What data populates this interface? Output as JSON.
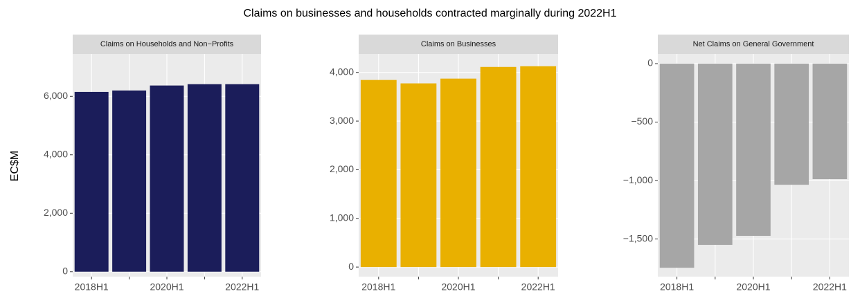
{
  "title": "Claims on businesses and households contracted marginally during 2022H1",
  "ylabel": "EC$M",
  "chart_data": [
    {
      "type": "bar",
      "title": "Claims on Households and Non−Profits",
      "categories": [
        "2018H1",
        null,
        "2020H1",
        null,
        "2022H1"
      ],
      "values": [
        6150,
        6200,
        6370,
        6415,
        6415
      ],
      "color": "#1b1d5a",
      "ylim": [
        -170,
        7450
      ],
      "yticks": [
        0,
        {
          "value": 2000,
          "label": "2,000"
        },
        {
          "value": 4000,
          "label": "4,000"
        },
        {
          "value": 6000,
          "label": "6,000"
        }
      ],
      "grid": true
    },
    {
      "type": "bar",
      "title": "Claims on Businesses",
      "categories": [
        "2018H1",
        null,
        "2020H1",
        null,
        "2022H1"
      ],
      "values": [
        3845,
        3775,
        3873,
        4113,
        4127
      ],
      "color": "#e9b000",
      "ylim": [
        -197,
        4380
      ],
      "yticks": [
        0,
        {
          "value": 1000,
          "label": "1,000"
        },
        {
          "value": 2000,
          "label": "2,000"
        },
        {
          "value": 3000,
          "label": "3,000"
        },
        {
          "value": 4000,
          "label": "4,000"
        }
      ],
      "grid": true
    },
    {
      "type": "bar",
      "title": "Net Claims on General Government",
      "categories": [
        "2018H1",
        null,
        "2020H1",
        null,
        "2022H1"
      ],
      "values": [
        -1746,
        -1550,
        -1473,
        -1036,
        -988
      ],
      "color": "#a6a6a6",
      "ylim": [
        -1822,
        83
      ],
      "yticks": [
        {
          "value": -1500,
          "label": "−1,500"
        },
        {
          "value": -1000,
          "label": "−1,000"
        },
        {
          "value": -500,
          "label": "−500"
        },
        0
      ],
      "grid": true
    }
  ]
}
